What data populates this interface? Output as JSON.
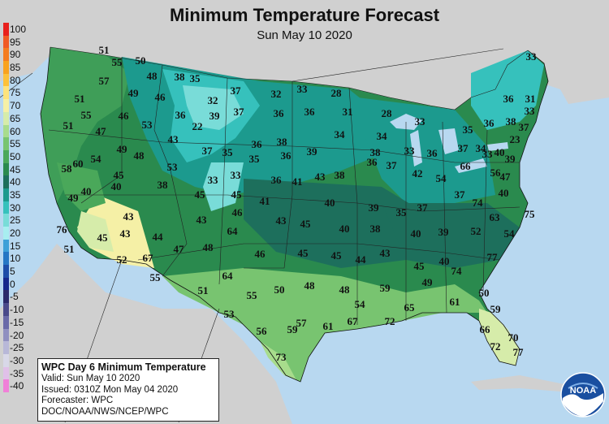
{
  "title": "Minimum Temperature Forecast",
  "subtitle": "Sun May 10 2020",
  "legend": {
    "labels": [
      "100",
      "95",
      "90",
      "85",
      "80",
      "75",
      "70",
      "65",
      "60",
      "55",
      "50",
      "45",
      "40",
      "35",
      "30",
      "25",
      "20",
      "15",
      "10",
      "5",
      "0",
      "-5",
      "-10",
      "-15",
      "-20",
      "-25",
      "-30",
      "-35",
      "-40"
    ],
    "colors": [
      "#e8201c",
      "#f05a24",
      "#f47c20",
      "#f9a21e",
      "#fcc13a",
      "#fde37d",
      "#f5f0a6",
      "#d6ecaa",
      "#a8dc8c",
      "#78c470",
      "#4aa85a",
      "#2a8a4e",
      "#1d6f5c",
      "#1c9a8e",
      "#36c1bc",
      "#79dcd8",
      "#a8eef0",
      "#3ea0d8",
      "#2576c4",
      "#1c4ca8",
      "#16288c",
      "#2a2a6a",
      "#4a4a8a",
      "#6a6aa8",
      "#9090c0",
      "#b8b8d8",
      "#d8d8e8",
      "#e0c0e8",
      "#f080d8"
    ]
  },
  "info": {
    "heading": "WPC Day 6 Minimum Temperature",
    "lines": [
      "Valid: Sun May 10 2020",
      "Issued: 0310Z Mon May 04 2020",
      "Forecaster: WPC",
      "DOC/NOAA/NWS/NCEP/WPC"
    ]
  },
  "logo_text": "NOAA",
  "temps": [
    "51",
    "50",
    "55",
    "48",
    "38",
    "35",
    "57",
    "49",
    "46",
    "37",
    "32",
    "33",
    "28",
    "33",
    "51",
    "55",
    "46",
    "53",
    "36",
    "32",
    "39",
    "37",
    "36",
    "36",
    "31",
    "28",
    "31",
    "36",
    "33",
    "51",
    "47",
    "22",
    "43",
    "36",
    "38",
    "39",
    "34",
    "34",
    "33",
    "35",
    "36",
    "38",
    "37",
    "23",
    "40",
    "49",
    "48",
    "37",
    "35",
    "35",
    "36",
    "38",
    "33",
    "36",
    "37",
    "34",
    "33",
    "39",
    "58",
    "60",
    "54",
    "45",
    "53",
    "33",
    "33",
    "36",
    "41",
    "43",
    "38",
    "36",
    "37",
    "42",
    "54",
    "66",
    "56",
    "47",
    "49",
    "40",
    "40",
    "38",
    "45",
    "45",
    "41",
    "40",
    "39",
    "35",
    "37",
    "37",
    "74",
    "40",
    "43",
    "43",
    "46",
    "43",
    "45",
    "40",
    "38",
    "40",
    "39",
    "52",
    "63",
    "75",
    "76",
    "45",
    "43",
    "44",
    "64",
    "54",
    "51",
    "47",
    "48",
    "46",
    "45",
    "45",
    "44",
    "43",
    "45",
    "40",
    "74",
    "77",
    "52",
    "67",
    "64",
    "55",
    "51",
    "55",
    "50",
    "48",
    "48",
    "59",
    "49",
    "50",
    "53",
    "54",
    "65",
    "61",
    "59",
    "56",
    "59",
    "57",
    "61",
    "67",
    "72",
    "66",
    "70",
    "73",
    "72",
    "77"
  ]
}
